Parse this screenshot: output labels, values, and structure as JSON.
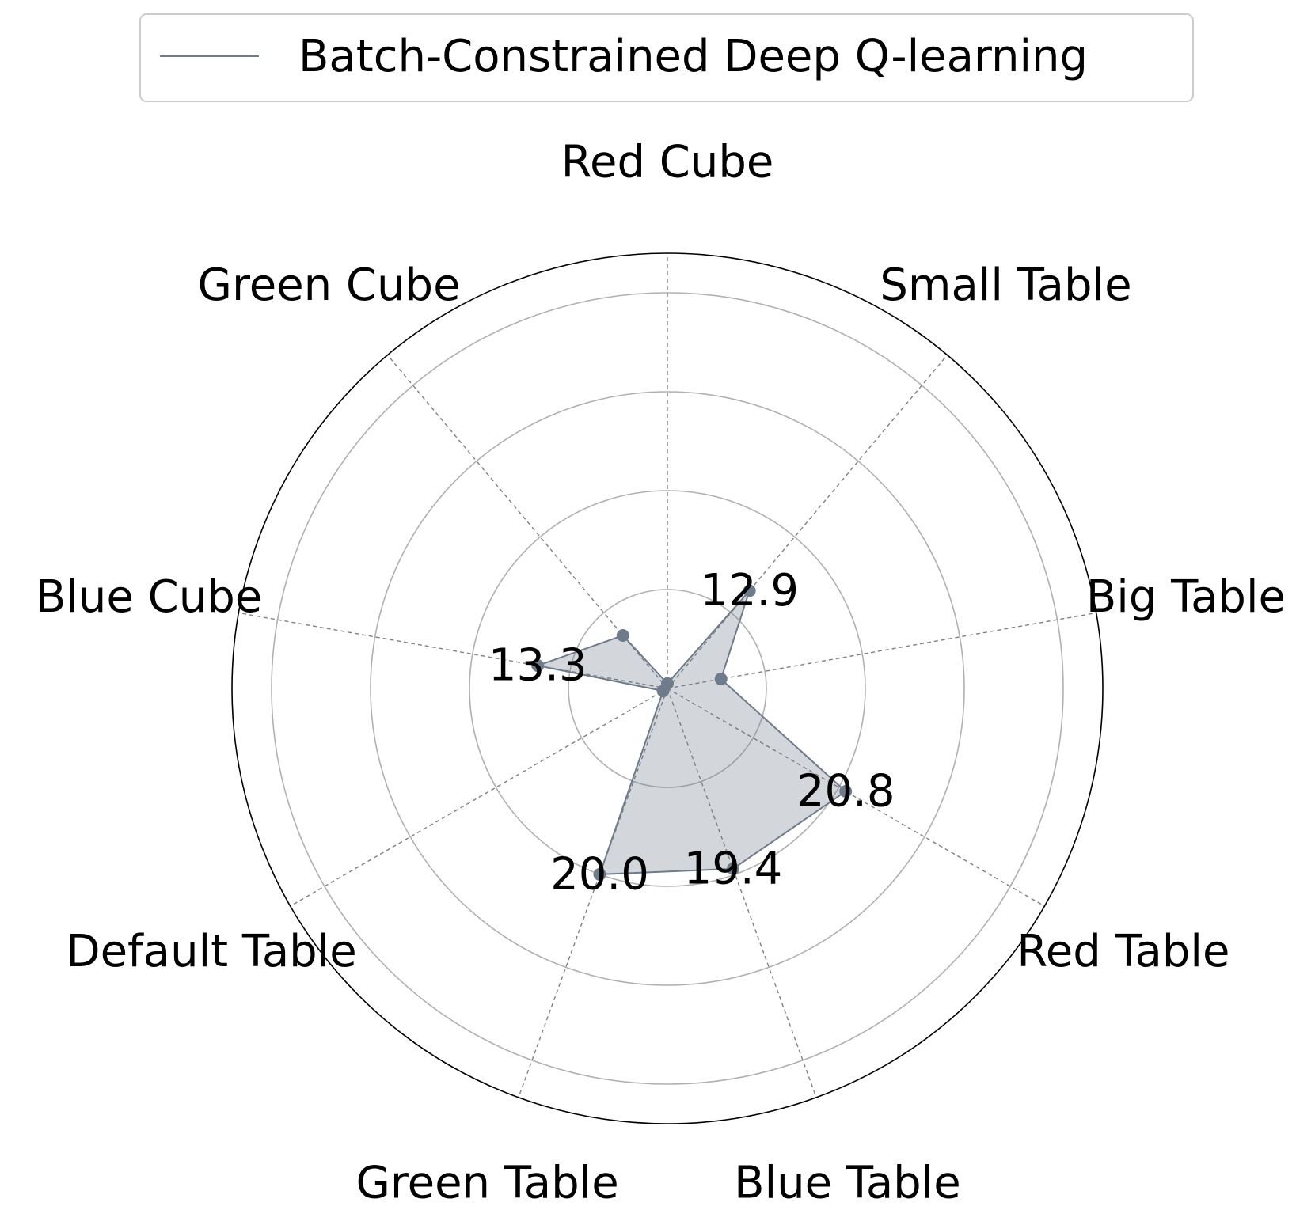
{
  "chart_data": {
    "type": "radar",
    "categories": [
      "Red Cube",
      "Small Table",
      "Big Table",
      "Red Table",
      "Blue Table",
      "Green Table",
      "Default Table",
      "Blue Cube",
      "Green Cube"
    ],
    "series": [
      {
        "name": "Batch-Constrained Deep Q-learning",
        "values": [
          0.5,
          12.9,
          5.5,
          20.8,
          19.4,
          20.0,
          0.5,
          13.3,
          7.0
        ],
        "color": "#6e7b8b",
        "fill_opacity": 0.3
      }
    ],
    "data_labels": [
      {
        "category": "Small Table",
        "text": "12.9"
      },
      {
        "category": "Red Table",
        "text": "20.8"
      },
      {
        "category": "Blue Table",
        "text": "19.4"
      },
      {
        "category": "Green Table",
        "text": "20.0"
      },
      {
        "category": "Blue Cube",
        "text": "13.3"
      }
    ],
    "rlim": [
      0,
      44
    ],
    "rings": [
      10,
      20,
      30,
      40
    ],
    "legend_position": "top-center",
    "grid": true
  }
}
